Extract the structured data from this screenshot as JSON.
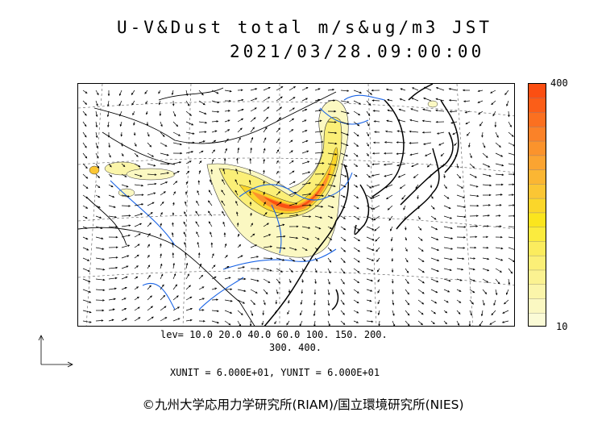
{
  "title": {
    "line1": "U-V&Dust total m/s&ug/m3 JST",
    "line2": "2021/03/28.09:00:00"
  },
  "colorbar": {
    "max_label": "400",
    "min_label": "10",
    "colors": [
      "#fbfbd6",
      "#fbf8c2",
      "#fbf5aa",
      "#fbf291",
      "#fbef77",
      "#fbec5e",
      "#fbeb3e",
      "#fbe51e",
      "#fbd62a",
      "#fbc634",
      "#fbb633",
      "#fba431",
      "#fb932c",
      "#fb8228",
      "#fb7020",
      "#fb5e18",
      "#fb4f12"
    ]
  },
  "levels": {
    "line1": "lev= 10.0 20.0 40.0 60.0 100. 150. 200.",
    "line2": "300. 400."
  },
  "units": "XUNIT = 6.000E+01, YUNIT = 6.000E+01",
  "credit": "©九州大学応用力学研究所(RIAM)/国立環境研究所(NIES)",
  "colors": {
    "coast": "#000000",
    "river": "#1a64e6",
    "dust_low": "#fbf5aa",
    "dust_mid": "#fbe51e",
    "dust_high": "#fb4f12"
  }
}
